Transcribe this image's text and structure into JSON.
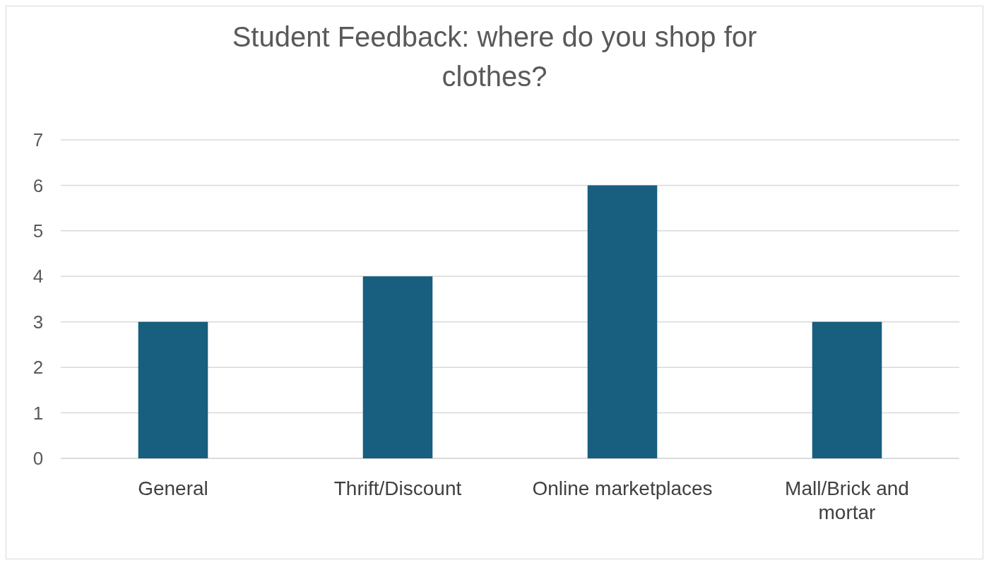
{
  "chart_data": {
    "type": "bar",
    "title": "Student Feedback: where do you shop for clothes?",
    "categories": [
      "General",
      "Thrift/Discount",
      "Online marketplaces",
      "Mall/Brick and mortar"
    ],
    "values": [
      3,
      4,
      6,
      3
    ],
    "color": "#175e7f",
    "ylim": [
      0,
      7
    ],
    "yticks": [
      0,
      1,
      2,
      3,
      4,
      5,
      6,
      7
    ],
    "grid": "y"
  }
}
